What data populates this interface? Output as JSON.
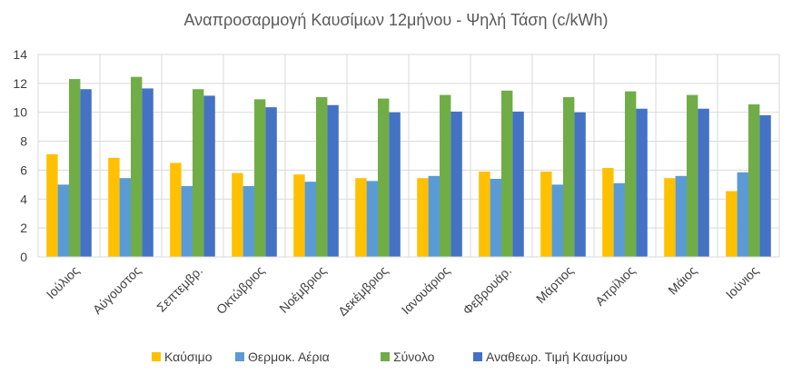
{
  "chart_data": {
    "type": "bar",
    "title": "Αναπροσαρμογή Καυσίμων 12μήνου - Ψηλή Τάση  (c/kWh)",
    "xlabel": "",
    "ylabel": "",
    "ylim": [
      0,
      14
    ],
    "yticks": [
      0,
      2,
      4,
      6,
      8,
      10,
      12,
      14
    ],
    "grid": true,
    "legend_position": "bottom",
    "categories": [
      "Ιούλιος",
      "Αύγουστος",
      "Σεπτεμβρ.",
      "Οκτώβριος",
      "Νοέμβριος",
      "Δεκέμβριος",
      "Ιανουάριος",
      "Φεβρουάρ.",
      "Μάρτιος",
      "Απρίλιος",
      "Μάιος",
      "Ιούνιος"
    ],
    "series": [
      {
        "name": "Καύσιμο",
        "color": "#FFC000",
        "values": [
          7.1,
          6.85,
          6.5,
          5.8,
          5.7,
          5.45,
          5.45,
          5.9,
          5.9,
          6.15,
          5.45,
          4.55
        ]
      },
      {
        "name": "Θερμοκ. Αέρια",
        "color": "#5B9BD5",
        "values": [
          5.0,
          5.45,
          4.9,
          4.9,
          5.2,
          5.25,
          5.6,
          5.4,
          5.0,
          5.1,
          5.6,
          5.85
        ]
      },
      {
        "name": "Σύνολο",
        "color": "#70AD47",
        "values": [
          12.3,
          12.45,
          11.6,
          10.9,
          11.05,
          10.95,
          11.2,
          11.5,
          11.05,
          11.45,
          11.2,
          10.55
        ]
      },
      {
        "name": "Αναθεωρ. Τιμή Καυσίμου",
        "color": "#4472C4",
        "values": [
          11.6,
          11.65,
          11.15,
          10.35,
          10.5,
          10.0,
          10.05,
          10.05,
          10.0,
          10.25,
          10.25,
          9.8
        ]
      }
    ]
  }
}
